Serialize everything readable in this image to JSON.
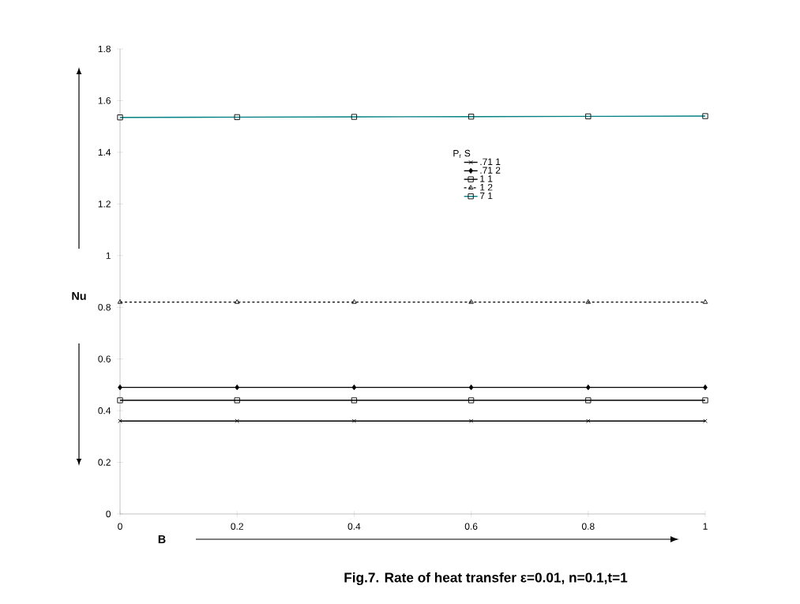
{
  "chart_data": {
    "type": "line",
    "title": "Fig.7. Rate of heat transfer ε=0.01, n=0.1,t=1",
    "xlabel": "B",
    "ylabel": "Nu",
    "legend_title": "P$_{r}$      S",
    "x": [
      0,
      0.2,
      0.4,
      0.6,
      0.8,
      1
    ],
    "series": [
      {
        "name": ".71      1",
        "color": "#000000",
        "marker": "cross",
        "line_style": "solid",
        "values": [
          0.36,
          0.36,
          0.36,
          0.36,
          0.36,
          0.36
        ]
      },
      {
        "name": ".71      2",
        "color": "#000000",
        "marker": "diamond",
        "line_style": "solid",
        "values": [
          0.49,
          0.49,
          0.49,
          0.49,
          0.49,
          0.49
        ]
      },
      {
        "name": "1      1",
        "color": "#000000",
        "marker": "square",
        "line_style": "solid",
        "values": [
          0.44,
          0.44,
          0.44,
          0.44,
          0.44,
          0.44
        ]
      },
      {
        "name": "1      2",
        "color": "#000000",
        "marker": "triangle",
        "line_style": "dashed",
        "values": [
          0.82,
          0.82,
          0.82,
          0.82,
          0.82,
          0.82
        ]
      },
      {
        "name": "7      1",
        "color": "#008080",
        "marker": "square",
        "line_style": "solid",
        "values": [
          1.535,
          1.536,
          1.537,
          1.538,
          1.539,
          1.54
        ]
      }
    ],
    "xlim": [
      0,
      1
    ],
    "ylim": [
      0,
      1.8
    ],
    "xticks": [
      0,
      0.2,
      0.4,
      0.6,
      0.8,
      1
    ],
    "yticks": [
      0,
      0.2,
      0.4,
      0.6,
      0.8,
      1,
      1.2,
      1.4,
      1.6,
      1.8
    ],
    "grid": false,
    "legend": "top right"
  }
}
